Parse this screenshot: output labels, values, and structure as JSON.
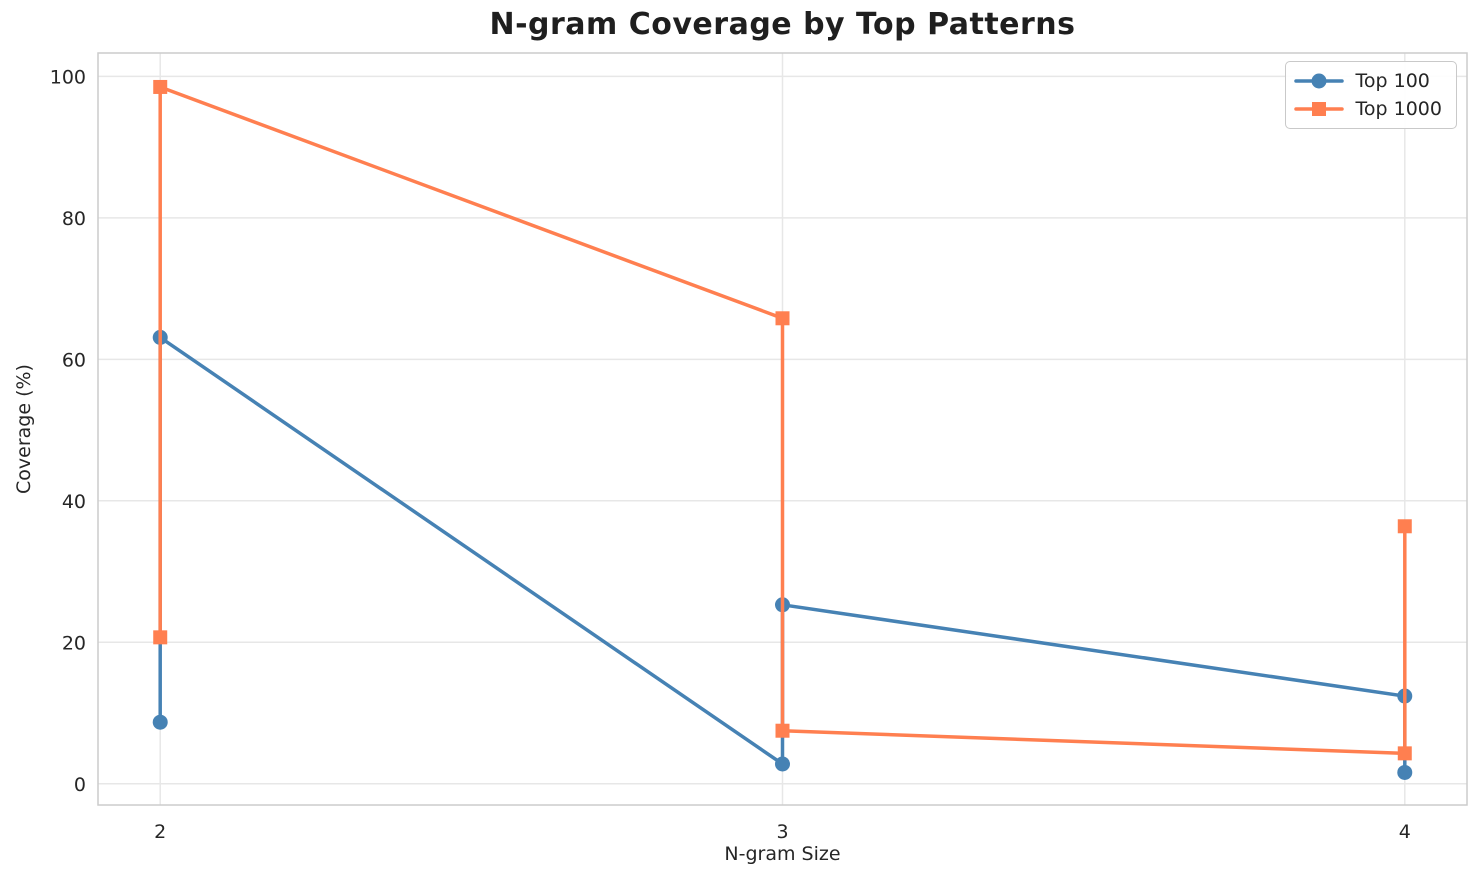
{
  "chart_data": {
    "type": "line",
    "title": "N-gram Coverage by Top Patterns",
    "xlabel": "N-gram Size",
    "ylabel": "Coverage (%)",
    "x_ticks": [
      2,
      3,
      4
    ],
    "y_ticks": [
      0,
      20,
      40,
      60,
      80,
      100
    ],
    "xlim": [
      1.9,
      4.1
    ],
    "ylim": [
      -3,
      103.3
    ],
    "grid": true,
    "legend_position": "upper right",
    "series": [
      {
        "name": "Top 100",
        "color": "#4682b4",
        "marker": "circle",
        "points": [
          [
            2,
            8.7
          ],
          [
            2,
            63.1
          ],
          [
            3,
            2.8
          ],
          [
            3,
            25.3
          ],
          [
            4,
            12.4
          ],
          [
            4,
            1.6
          ]
        ]
      },
      {
        "name": "Top 1000",
        "color": "#ff7f50",
        "marker": "square",
        "points": [
          [
            2,
            20.7
          ],
          [
            2,
            98.5
          ],
          [
            3,
            65.8
          ],
          [
            3,
            7.5
          ],
          [
            4,
            4.3
          ],
          [
            4,
            36.4
          ]
        ]
      }
    ],
    "colors": {
      "grid": "#e7e7e7",
      "spine": "#cccccc",
      "text": "#262626",
      "background": "#ffffff"
    }
  }
}
